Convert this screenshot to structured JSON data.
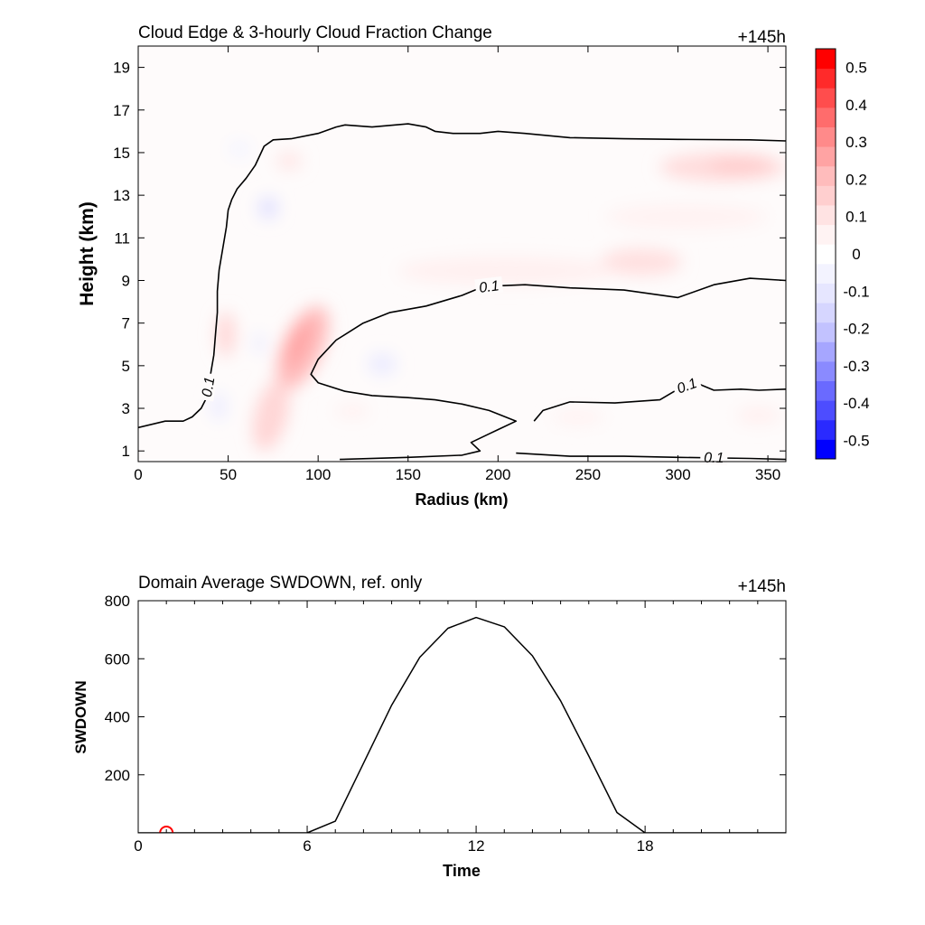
{
  "chart_data": [
    {
      "type": "heatmap",
      "title": "Cloud Edge & 3-hourly Cloud Fraction Change",
      "time_label": "+145h",
      "xlabel": "Radius (km)",
      "ylabel": "Height (km)",
      "xlim": [
        0,
        360
      ],
      "ylim": [
        0.5,
        20
      ],
      "xticks": [
        "0",
        "50",
        "100",
        "150",
        "200",
        "250",
        "300",
        "350"
      ],
      "xtick_values": [
        0,
        50,
        100,
        150,
        200,
        250,
        300,
        350
      ],
      "yticks": [
        "1",
        "3",
        "5",
        "7",
        "9",
        "11",
        "13",
        "15",
        "17",
        "19"
      ],
      "ytick_values": [
        1,
        3,
        5,
        7,
        9,
        11,
        13,
        15,
        17,
        19
      ],
      "colorbar": {
        "labels": [
          "0.5",
          "0.4",
          "0.3",
          "0.2",
          "0.1",
          "0",
          "-0.1",
          "-0.2",
          "-0.3",
          "-0.4",
          "-0.5"
        ],
        "min": -0.55,
        "max": 0.55,
        "colors": [
          "#0000ff",
          "#2a2aff",
          "#4d4dff",
          "#6a6aff",
          "#8a8aff",
          "#a6a6ff",
          "#c2c2ff",
          "#d6d6ff",
          "#e6e6ff",
          "#f3f3ff",
          "#ffffff",
          "#fff3f3",
          "#ffe3e3",
          "#ffcfcf",
          "#ffbcbc",
          "#ffa3a3",
          "#ff8a8a",
          "#ff6c6c",
          "#ff4d4d",
          "#ff2a2a",
          "#ff0000"
        ]
      },
      "contour_level": "0.1",
      "contour_lines": [
        {
          "label": "0.1",
          "points": [
            [
              0,
              2.1
            ],
            [
              15,
              2.4
            ],
            [
              25,
              2.4
            ],
            [
              30,
              2.6
            ],
            [
              35,
              3.0
            ],
            [
              38,
              3.5
            ],
            [
              40,
              4.5
            ],
            [
              42,
              5.5
            ],
            [
              43,
              6.5
            ],
            [
              44,
              7.5
            ],
            [
              44,
              8.5
            ],
            [
              45,
              9.5
            ],
            [
              47,
              10.5
            ],
            [
              49,
              11.5
            ],
            [
              50,
              12.3
            ],
            [
              52,
              12.8
            ],
            [
              55,
              13.3
            ],
            [
              60,
              13.8
            ],
            [
              65,
              14.4
            ],
            [
              70,
              15.3
            ],
            [
              75,
              15.6
            ],
            [
              85,
              15.65
            ],
            [
              100,
              15.9
            ],
            [
              110,
              16.2
            ],
            [
              115,
              16.3
            ],
            [
              130,
              16.2
            ],
            [
              150,
              16.35
            ],
            [
              160,
              16.2
            ],
            [
              165,
              16.0
            ],
            [
              175,
              15.9
            ],
            [
              190,
              15.9
            ],
            [
              200,
              16.0
            ],
            [
              215,
              15.9
            ],
            [
              240,
              15.7
            ],
            [
              270,
              15.65
            ],
            [
              300,
              15.62
            ],
            [
              340,
              15.6
            ],
            [
              360,
              15.55
            ]
          ]
        },
        {
          "label": "0.1",
          "points": [
            [
              112,
              0.6
            ],
            [
              150,
              0.7
            ],
            [
              180,
              0.8
            ],
            [
              190,
              1.0
            ],
            [
              185,
              1.4
            ],
            [
              195,
              1.8
            ],
            [
              200,
              2.0
            ],
            [
              210,
              2.4
            ],
            [
              195,
              2.9
            ],
            [
              180,
              3.2
            ],
            [
              165,
              3.4
            ],
            [
              150,
              3.5
            ],
            [
              130,
              3.6
            ],
            [
              115,
              3.8
            ],
            [
              100,
              4.2
            ],
            [
              96,
              4.6
            ],
            [
              100,
              5.3
            ],
            [
              110,
              6.2
            ],
            [
              125,
              7.0
            ],
            [
              140,
              7.5
            ],
            [
              160,
              7.8
            ],
            [
              180,
              8.3
            ],
            [
              190,
              8.65
            ],
            [
              200,
              8.75
            ],
            [
              215,
              8.8
            ],
            [
              240,
              8.65
            ],
            [
              270,
              8.55
            ],
            [
              300,
              8.2
            ],
            [
              320,
              8.8
            ],
            [
              340,
              9.1
            ],
            [
              360,
              9.0
            ]
          ]
        },
        {
          "label": "0.1",
          "points": [
            [
              220,
              2.4
            ],
            [
              225,
              2.9
            ],
            [
              240,
              3.3
            ],
            [
              265,
              3.25
            ],
            [
              290,
              3.4
            ],
            [
              300,
              3.9
            ],
            [
              310,
              4.2
            ],
            [
              320,
              3.85
            ],
            [
              335,
              3.9
            ],
            [
              345,
              3.85
            ],
            [
              360,
              3.9
            ]
          ]
        },
        {
          "label": "0.1",
          "points": [
            [
              210,
              0.9
            ],
            [
              240,
              0.75
            ],
            [
              270,
              0.75
            ],
            [
              300,
              0.7
            ],
            [
              340,
              0.65
            ],
            [
              360,
              0.6
            ]
          ]
        }
      ]
    },
    {
      "type": "line",
      "title": "Domain Average SWDOWN, ref. only",
      "time_label": "+145h",
      "xlabel": "Time",
      "ylabel": "SWDOWN",
      "xlim": [
        0,
        23
      ],
      "ylim": [
        0,
        800
      ],
      "xticks": [
        "0",
        "6",
        "12",
        "18"
      ],
      "xtick_values": [
        0,
        6,
        12,
        18
      ],
      "yticks": [
        "200",
        "400",
        "600",
        "800"
      ],
      "ytick_values": [
        200,
        400,
        600,
        800
      ],
      "x": [
        0,
        1,
        2,
        3,
        4,
        5,
        6,
        7,
        8,
        9,
        10,
        11,
        12,
        13,
        14,
        15,
        16,
        17,
        18,
        19,
        20,
        21,
        22,
        23
      ],
      "values": [
        0,
        0,
        0,
        0,
        0,
        0,
        0,
        40,
        240,
        440,
        605,
        705,
        742,
        710,
        610,
        455,
        265,
        70,
        0,
        0,
        0,
        0,
        0,
        0
      ],
      "marker": {
        "x": 1,
        "y": 0,
        "color": "#ff0000"
      }
    }
  ]
}
